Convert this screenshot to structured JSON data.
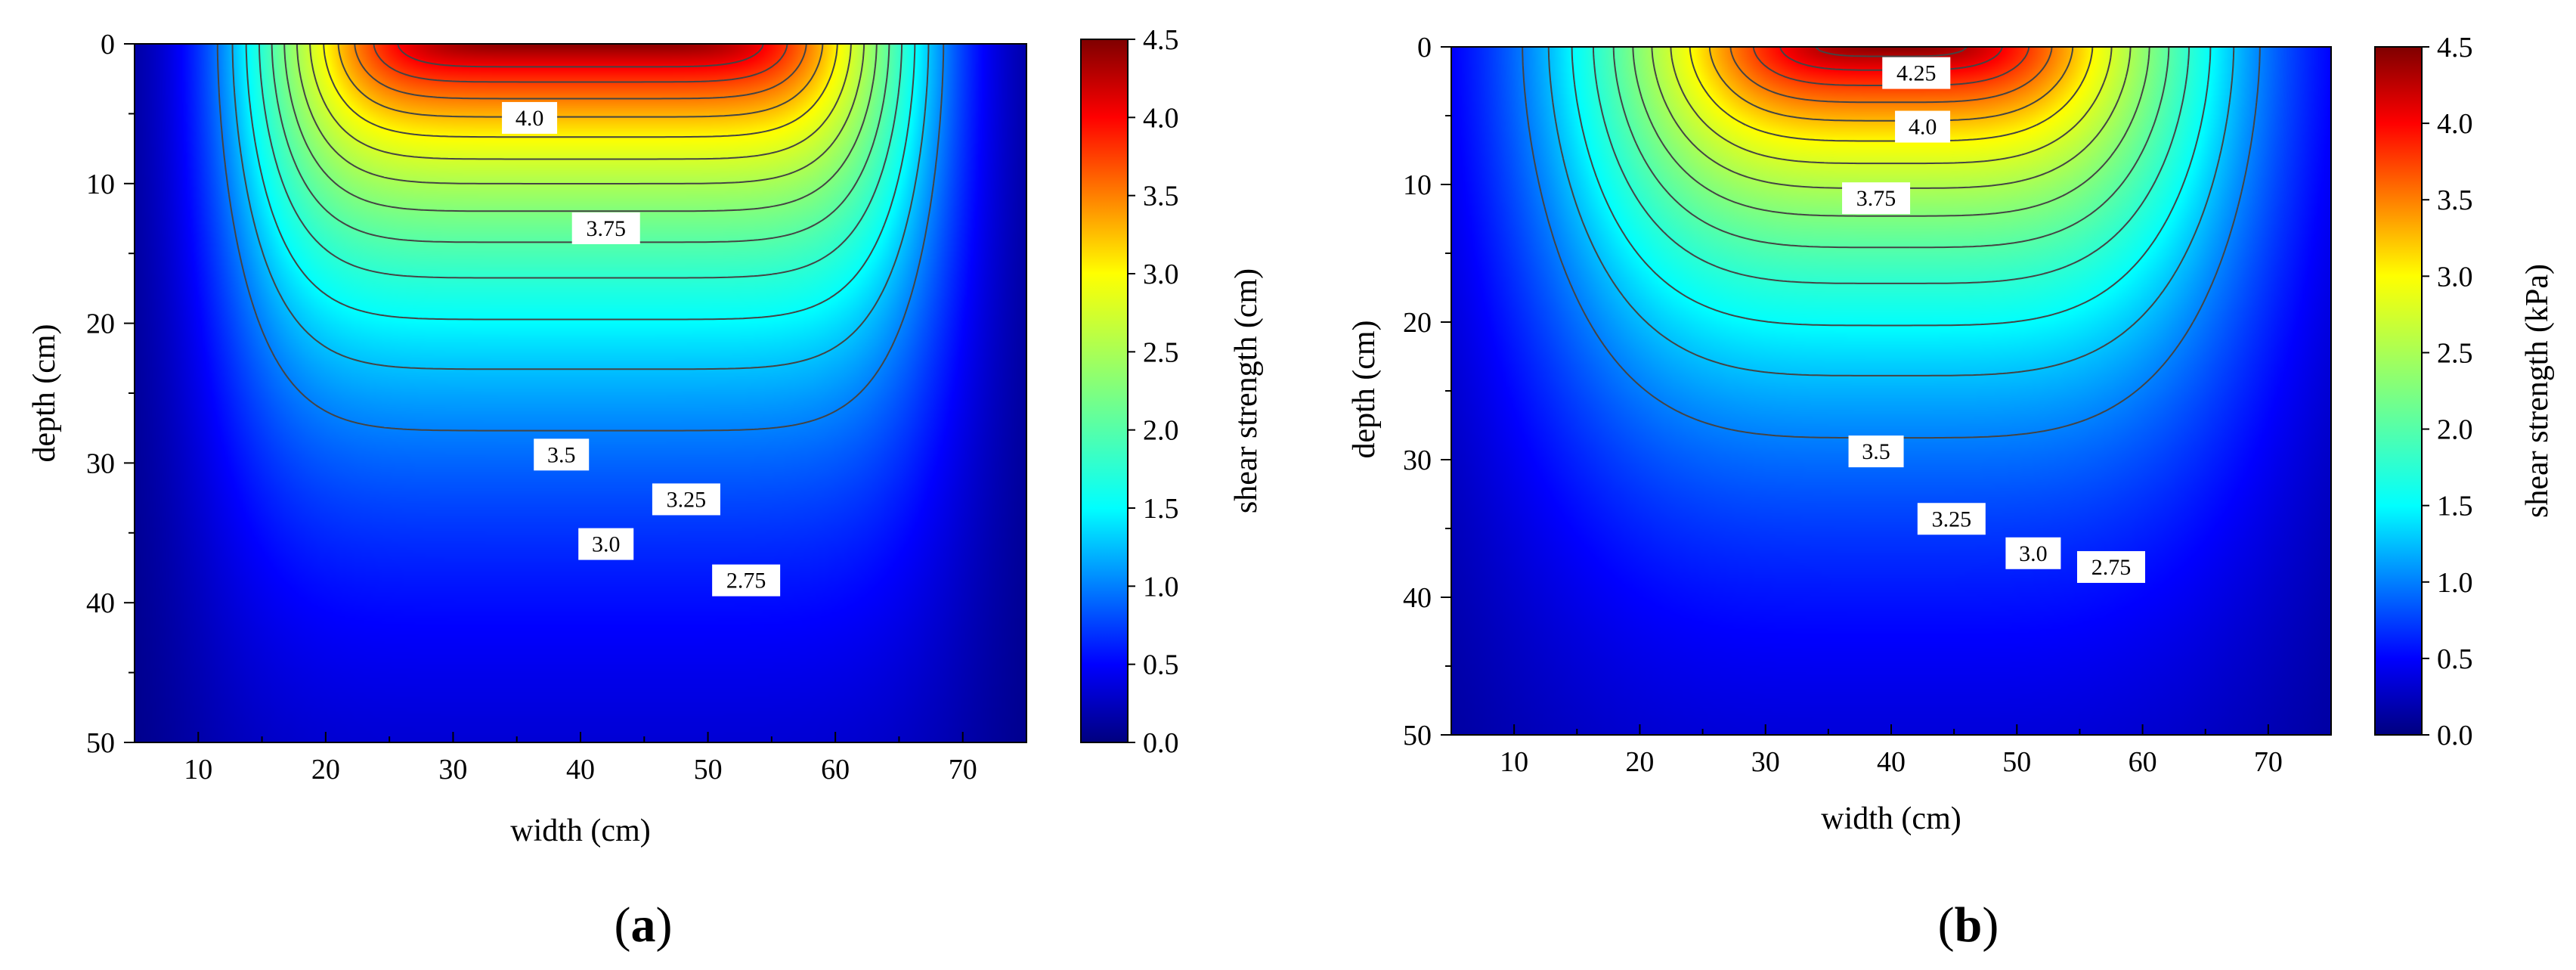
{
  "colors": {
    "colormap": [
      "#00007f",
      "#0000ff",
      "#007fff",
      "#00ffff",
      "#7fff7f",
      "#ffff00",
      "#ff7f00",
      "#ff0000",
      "#7f0000"
    ],
    "contour_line": "#444444",
    "label_box": "#ffffff"
  },
  "chart_data": [
    {
      "type": "contour",
      "panel": "a",
      "caption": "(a)",
      "caption_letter": "a",
      "xlabel": "width (cm)",
      "ylabel": "depth (cm)",
      "colorbar_label": "shear strength (cm)",
      "xlim": [
        5,
        75
      ],
      "ylim": [
        0,
        50
      ],
      "y_inverted": true,
      "xticks": [
        10,
        20,
        30,
        40,
        50,
        60,
        70
      ],
      "yticks": [
        0,
        10,
        20,
        30,
        40,
        50
      ],
      "colorbar_range": [
        0.0,
        4.5
      ],
      "colorbar_ticks": [
        "0.0",
        "0.5",
        "1.0",
        "1.5",
        "2.0",
        "2.5",
        "3.0",
        "3.5",
        "4.0",
        "4.5"
      ],
      "field": {
        "peak": 4.45,
        "center_x": 40,
        "sx": 26,
        "sy": 19,
        "nx": 7,
        "ny": 1.7,
        "edge_floor": 0.95
      },
      "contour_levels": [
        1.0,
        1.25,
        1.5,
        1.75,
        2.0,
        2.25,
        2.5,
        2.75,
        3.0,
        3.25,
        3.5,
        3.75,
        4.0
      ],
      "contour_labels": [
        {
          "text": "4.0",
          "x": 36,
          "y": 5.3
        },
        {
          "text": "3.75",
          "x": 42,
          "y": 13.2
        },
        {
          "text": "3.5",
          "x": 38.5,
          "y": 29.4
        },
        {
          "text": "3.25",
          "x": 48.3,
          "y": 32.6
        },
        {
          "text": "3.0",
          "x": 42,
          "y": 35.8
        },
        {
          "text": "2.75",
          "x": 53,
          "y": 38.4
        }
      ]
    },
    {
      "type": "contour",
      "panel": "b",
      "caption": "(b)",
      "caption_letter": "b",
      "xlabel": "width (cm)",
      "ylabel": "depth (cm)",
      "colorbar_label": "shear strength  (kPa)",
      "xlim": [
        5,
        75
      ],
      "ylim": [
        0,
        50
      ],
      "y_inverted": true,
      "xticks": [
        10,
        20,
        30,
        40,
        50,
        60,
        70
      ],
      "yticks": [
        0,
        10,
        20,
        30,
        40,
        50
      ],
      "colorbar_range": [
        0.0,
        4.5
      ],
      "colorbar_ticks": [
        "0.0",
        "0.5",
        "1.0",
        "1.5",
        "2.0",
        "2.5",
        "3.0",
        "3.5",
        "4.0",
        "4.5"
      ],
      "field": {
        "peak": 4.45,
        "center_x": 40,
        "sx": 25,
        "sy": 19.5,
        "nx": 4,
        "ny": 1.7,
        "edge_floor": 0.95
      },
      "contour_levels": [
        1.0,
        1.25,
        1.5,
        1.75,
        2.0,
        2.25,
        2.5,
        2.75,
        3.0,
        3.25,
        3.5,
        3.75,
        4.0,
        4.25
      ],
      "contour_labels": [
        {
          "text": "4.25",
          "x": 42,
          "y": 1.9
        },
        {
          "text": "4.0",
          "x": 42.5,
          "y": 5.8
        },
        {
          "text": "3.75",
          "x": 38.8,
          "y": 11
        },
        {
          "text": "3.5",
          "x": 38.8,
          "y": 29.4
        },
        {
          "text": "3.25",
          "x": 44.8,
          "y": 34.3
        },
        {
          "text": "3.0",
          "x": 51.3,
          "y": 36.8
        },
        {
          "text": "2.75",
          "x": 57.5,
          "y": 37.8
        }
      ]
    }
  ]
}
